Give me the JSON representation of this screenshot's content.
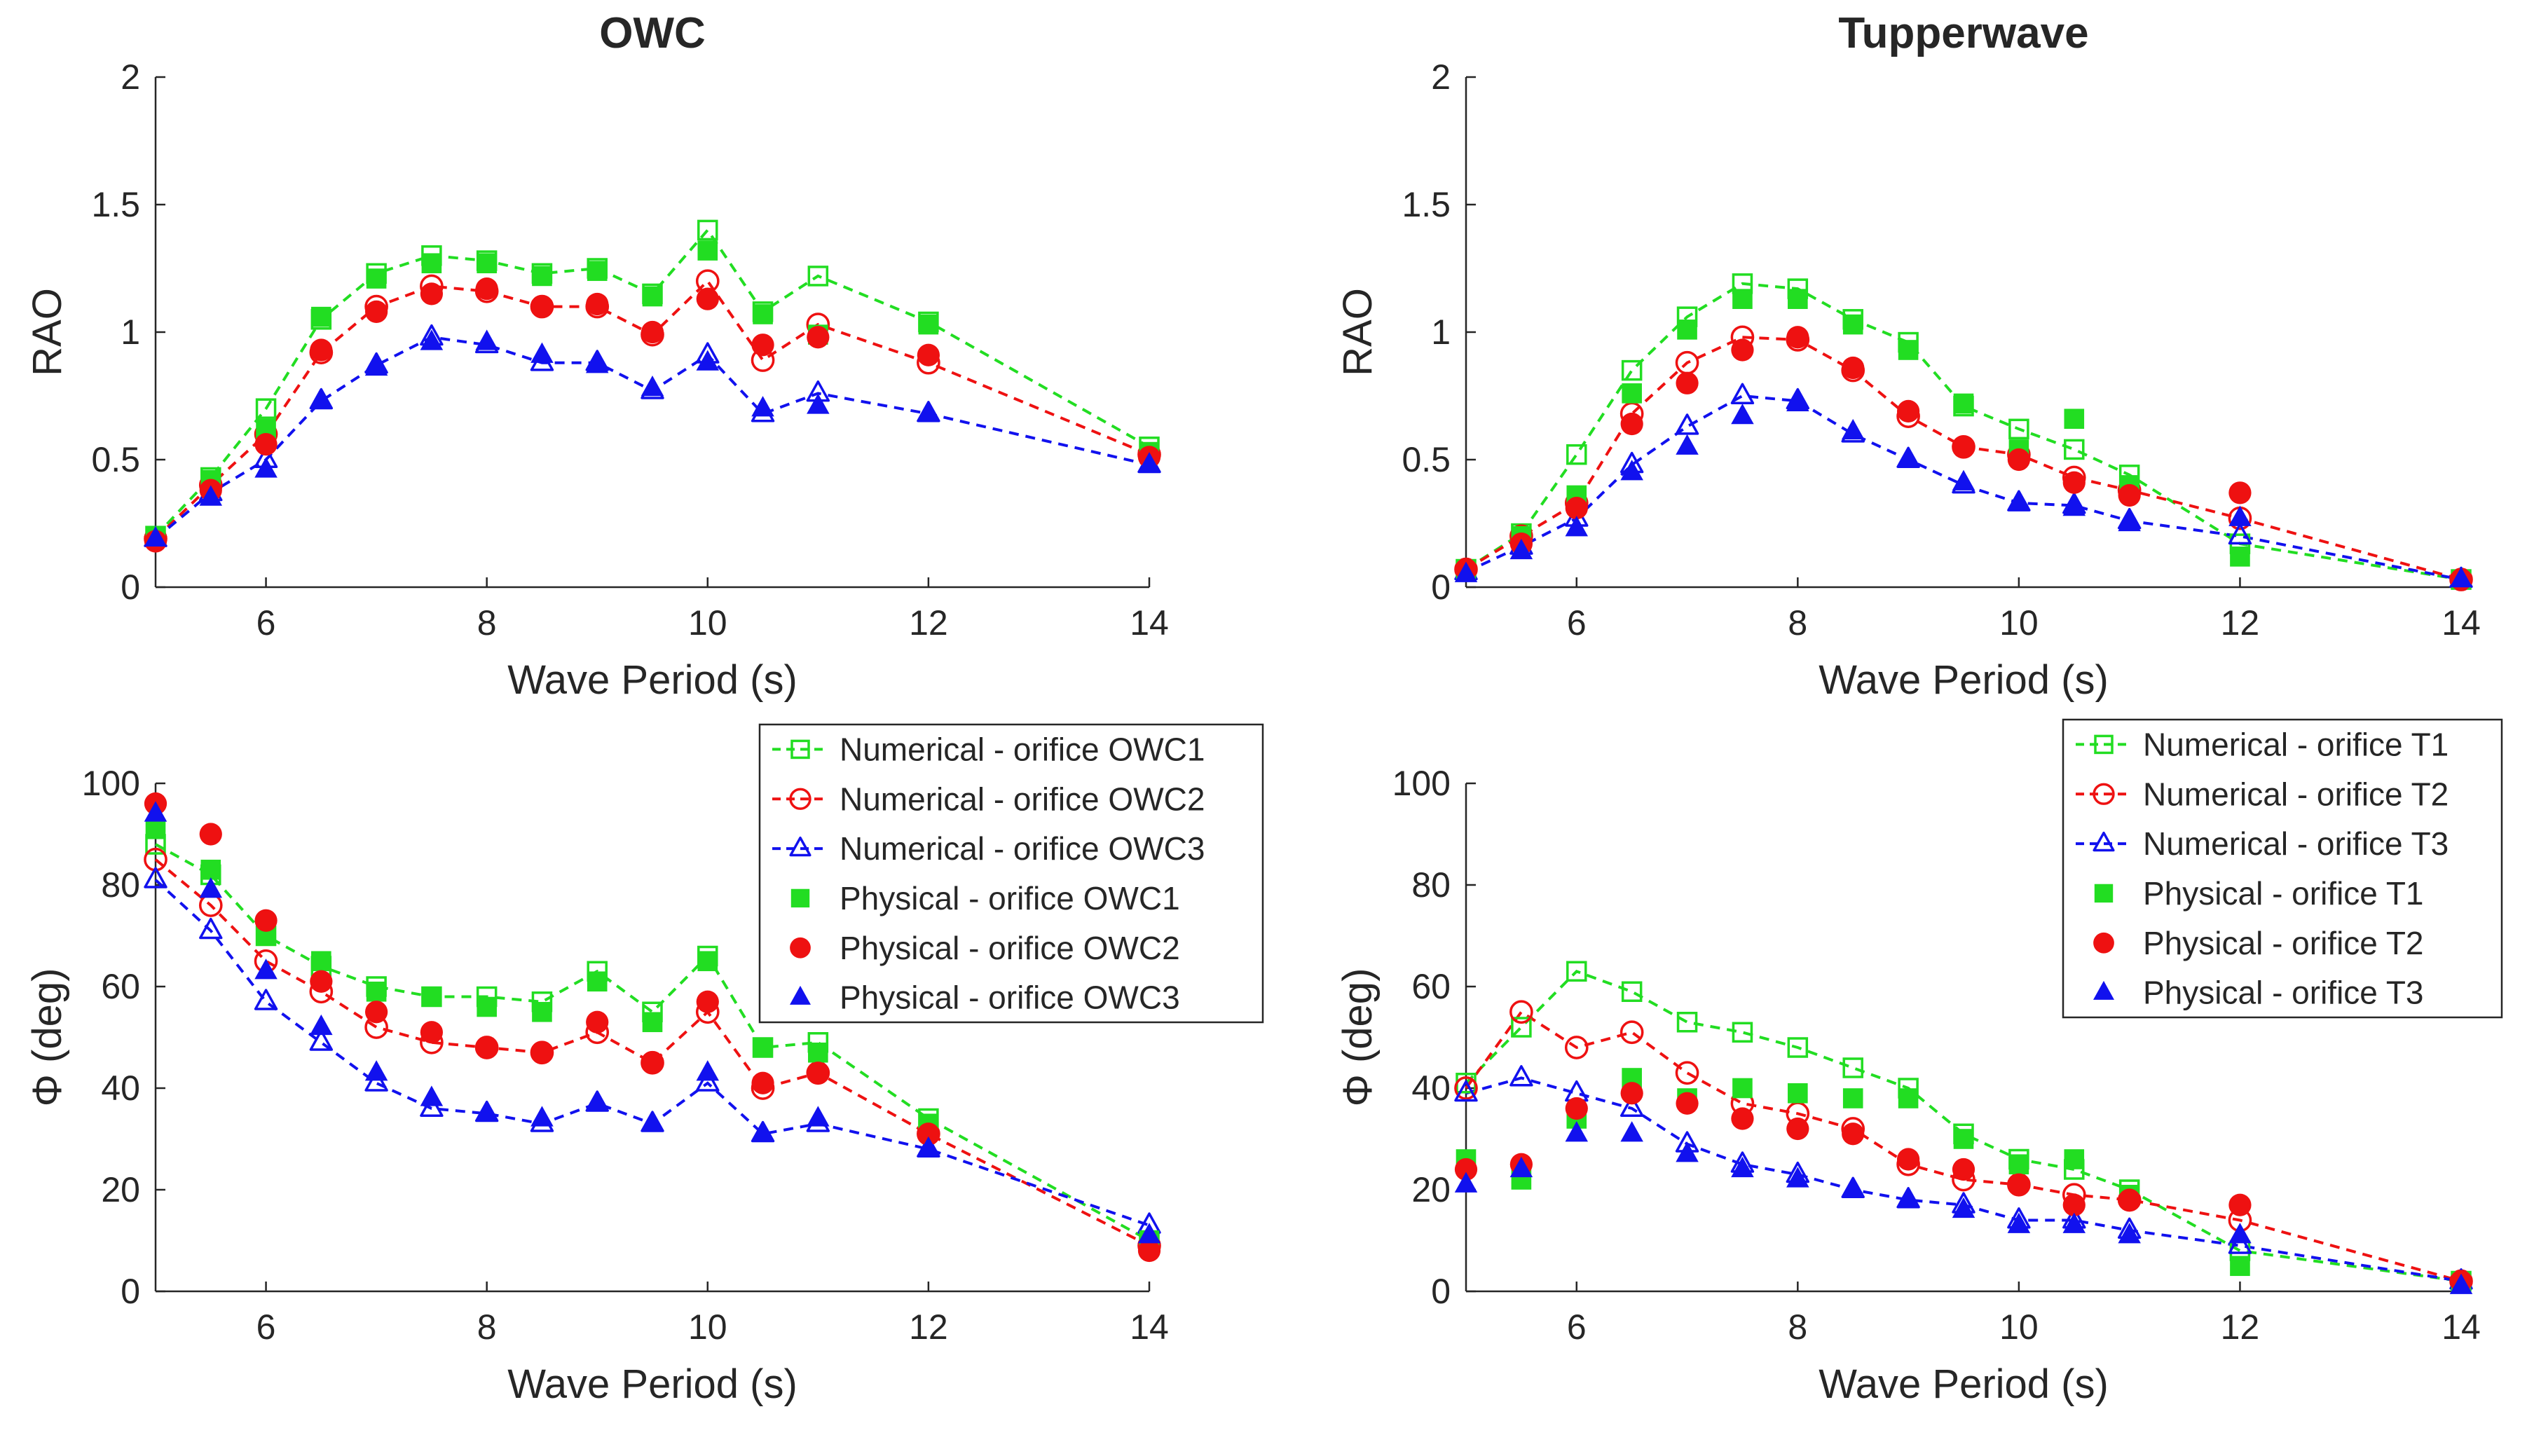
{
  "colors": {
    "Numerical - orifice OWC1": "#22dd22",
    "Numerical - orifice OWC2": "#ee1111",
    "Numerical - orifice OWC3": "#1111ee",
    "Physical - orifice OWC1": "#22dd22",
    "Physical - orifice OWC2": "#ee1111",
    "Physical - orifice OWC3": "#1111ee",
    "Numerical - orifice T1": "#22dd22",
    "Numerical - orifice T2": "#ee1111",
    "Numerical - orifice T3": "#1111ee",
    "Physical - orifice T1": "#22dd22",
    "Physical - orifice T2": "#ee1111",
    "Physical - orifice T3": "#1111ee"
  },
  "chart_data": [
    {
      "type": "line",
      "title": "OWC",
      "xlabel": "Wave Period (s)",
      "ylabel": "RAO",
      "xlim": [
        5,
        14
      ],
      "ylim": [
        0,
        2
      ],
      "xticks": [
        6,
        8,
        10,
        12,
        14
      ],
      "yticks": [
        0,
        0.5,
        1,
        1.5,
        2
      ],
      "ytick_labels": [
        "0",
        "0.5",
        "1",
        "1.5",
        "2"
      ],
      "legend": false,
      "series": [
        {
          "name": "Numerical - orifice OWC1",
          "style": "num",
          "marker": "square",
          "x": [
            5,
            5.5,
            6,
            6.5,
            7,
            7.5,
            8,
            8.5,
            9,
            9.5,
            10,
            10.5,
            11,
            12,
            14
          ],
          "values": [
            0.2,
            0.43,
            0.7,
            1.05,
            1.23,
            1.3,
            1.28,
            1.23,
            1.25,
            1.15,
            1.4,
            1.08,
            1.22,
            1.04,
            0.55
          ]
        },
        {
          "name": "Numerical - orifice OWC2",
          "style": "num",
          "marker": "circle",
          "x": [
            5,
            5.5,
            6,
            6.5,
            7,
            7.5,
            8,
            8.5,
            9,
            9.5,
            10,
            10.5,
            11,
            12,
            14
          ],
          "values": [
            0.19,
            0.4,
            0.6,
            0.92,
            1.1,
            1.18,
            1.16,
            1.1,
            1.1,
            0.99,
            1.2,
            0.89,
            1.03,
            0.88,
            0.52
          ]
        },
        {
          "name": "Numerical - orifice OWC3",
          "style": "num",
          "marker": "triangle",
          "x": [
            5,
            5.5,
            6,
            6.5,
            7,
            7.5,
            8,
            8.5,
            9,
            9.5,
            10,
            10.5,
            11,
            12,
            14
          ],
          "values": [
            0.19,
            0.37,
            0.5,
            0.73,
            0.87,
            0.98,
            0.95,
            0.88,
            0.88,
            0.77,
            0.91,
            0.68,
            0.76,
            0.68,
            0.48
          ]
        },
        {
          "name": "Physical - orifice OWC1",
          "style": "phys",
          "marker": "square",
          "x": [
            5,
            5.5,
            6,
            6.5,
            7,
            7.5,
            8,
            8.5,
            9,
            9.5,
            10,
            10.5,
            11,
            12,
            14
          ],
          "values": [
            0.2,
            0.42,
            0.62,
            1.06,
            1.21,
            1.27,
            1.27,
            1.22,
            1.24,
            1.14,
            1.32,
            1.07,
            0.99,
            1.03,
            0.53
          ]
        },
        {
          "name": "Physical - orifice OWC2",
          "style": "phys",
          "marker": "circle",
          "x": [
            5,
            5.5,
            6,
            6.5,
            7,
            7.5,
            8,
            8.5,
            9,
            9.5,
            10,
            10.5,
            11,
            12,
            14
          ],
          "values": [
            0.18,
            0.38,
            0.56,
            0.93,
            1.08,
            1.15,
            1.17,
            1.1,
            1.11,
            1.0,
            1.13,
            0.95,
            0.98,
            0.91,
            0.51
          ]
        },
        {
          "name": "Physical - orifice OWC3",
          "style": "phys",
          "marker": "triangle",
          "x": [
            5,
            5.5,
            6,
            6.5,
            7,
            7.5,
            8,
            8.5,
            9,
            9.5,
            10,
            10.5,
            11,
            12,
            14
          ],
          "values": [
            0.19,
            0.35,
            0.46,
            0.73,
            0.86,
            0.96,
            0.96,
            0.91,
            0.87,
            0.78,
            0.88,
            0.7,
            0.71,
            0.68,
            0.48
          ]
        }
      ]
    },
    {
      "type": "line",
      "title": "Tupperwave",
      "xlabel": "Wave Period (s)",
      "ylabel": "RAO",
      "xlim": [
        5,
        14
      ],
      "ylim": [
        0,
        2
      ],
      "xticks": [
        6,
        8,
        10,
        12,
        14
      ],
      "yticks": [
        0,
        0.5,
        1,
        1.5,
        2
      ],
      "ytick_labels": [
        "0",
        "0.5",
        "1",
        "1.5",
        "2"
      ],
      "legend": false,
      "series": [
        {
          "name": "Numerical - orifice T1",
          "style": "num",
          "marker": "square",
          "x": [
            5,
            5.5,
            6,
            6.5,
            7,
            7.5,
            8,
            8.5,
            9,
            9.5,
            10,
            10.5,
            11,
            12,
            14
          ],
          "values": [
            0.07,
            0.21,
            0.52,
            0.85,
            1.06,
            1.19,
            1.17,
            1.05,
            0.96,
            0.71,
            0.62,
            0.54,
            0.44,
            0.17,
            0.03
          ]
        },
        {
          "name": "Numerical - orifice T2",
          "style": "num",
          "marker": "circle",
          "x": [
            5,
            5.5,
            6,
            6.5,
            7,
            7.5,
            8,
            8.5,
            9,
            9.5,
            10,
            10.5,
            11,
            12,
            14
          ],
          "values": [
            0.07,
            0.2,
            0.33,
            0.68,
            0.88,
            0.98,
            0.97,
            0.85,
            0.67,
            0.55,
            0.52,
            0.43,
            0.38,
            0.27,
            0.03
          ]
        },
        {
          "name": "Numerical - orifice T3",
          "style": "num",
          "marker": "triangle",
          "x": [
            5,
            5.5,
            6,
            6.5,
            7,
            7.5,
            8,
            8.5,
            9,
            9.5,
            10,
            10.5,
            11,
            12,
            14
          ],
          "values": [
            0.06,
            0.16,
            0.27,
            0.48,
            0.63,
            0.75,
            0.73,
            0.6,
            0.5,
            0.4,
            0.33,
            0.32,
            0.26,
            0.2,
            0.03
          ]
        },
        {
          "name": "Physical - orifice T1",
          "style": "phys",
          "marker": "square",
          "x": [
            5,
            5.5,
            6,
            6.5,
            7,
            7.5,
            8,
            8.5,
            9,
            9.5,
            10,
            10.5,
            11,
            12,
            14
          ],
          "values": [
            0.07,
            0.2,
            0.36,
            0.76,
            1.01,
            1.13,
            1.13,
            1.03,
            0.93,
            0.72,
            0.54,
            0.66,
            0.4,
            0.12,
            0.03
          ]
        },
        {
          "name": "Physical - orifice T2",
          "style": "phys",
          "marker": "circle",
          "x": [
            5,
            5.5,
            6,
            6.5,
            7,
            7.5,
            8,
            8.5,
            9,
            9.5,
            10,
            10.5,
            11,
            12,
            14
          ],
          "values": [
            0.07,
            0.17,
            0.31,
            0.64,
            0.8,
            0.93,
            0.98,
            0.86,
            0.69,
            0.55,
            0.5,
            0.41,
            0.36,
            0.37,
            0.03
          ]
        },
        {
          "name": "Physical - orifice T3",
          "style": "phys",
          "marker": "triangle",
          "x": [
            5,
            5.5,
            6,
            6.5,
            7,
            7.5,
            8,
            8.5,
            9,
            9.5,
            10,
            10.5,
            11,
            12,
            14
          ],
          "values": [
            0.05,
            0.14,
            0.23,
            0.45,
            0.55,
            0.67,
            0.72,
            0.61,
            0.5,
            0.41,
            0.33,
            0.31,
            0.25,
            0.27,
            0.03
          ]
        }
      ]
    },
    {
      "type": "line",
      "title": "",
      "xlabel": "Wave Period (s)",
      "ylabel": "Φ (deg)",
      "xlim": [
        5,
        14
      ],
      "ylim": [
        0,
        100
      ],
      "xticks": [
        6,
        8,
        10,
        12,
        14
      ],
      "yticks": [
        0,
        20,
        40,
        60,
        80,
        100
      ],
      "ytick_labels": [
        "0",
        "20",
        "40",
        "60",
        "80",
        "100"
      ],
      "legend": "top-right",
      "series": [
        {
          "name": "Numerical - orifice OWC1",
          "style": "num",
          "marker": "square",
          "x": [
            5,
            5.5,
            6,
            6.5,
            7,
            7.5,
            8,
            8.5,
            9,
            9.5,
            10,
            10.5,
            11,
            12,
            14
          ],
          "values": [
            88,
            82,
            70,
            64,
            60,
            58,
            58,
            57,
            63,
            55,
            66,
            48,
            49,
            34,
            10
          ]
        },
        {
          "name": "Numerical - orifice OWC2",
          "style": "num",
          "marker": "circle",
          "x": [
            5,
            5.5,
            6,
            6.5,
            7,
            7.5,
            8,
            8.5,
            9,
            9.5,
            10,
            10.5,
            11,
            12,
            14
          ],
          "values": [
            85,
            76,
            65,
            59,
            52,
            49,
            48,
            47,
            51,
            45,
            55,
            40,
            43,
            31,
            9
          ]
        },
        {
          "name": "Numerical - orifice OWC3",
          "style": "num",
          "marker": "triangle",
          "x": [
            5,
            5.5,
            6,
            6.5,
            7,
            7.5,
            8,
            8.5,
            9,
            9.5,
            10,
            10.5,
            11,
            12,
            14
          ],
          "values": [
            81,
            71,
            57,
            49,
            41,
            36,
            35,
            33,
            37,
            33,
            41,
            31,
            33,
            28,
            13
          ]
        },
        {
          "name": "Physical - orifice OWC1",
          "style": "phys",
          "marker": "square",
          "x": [
            5,
            5.5,
            6,
            6.5,
            7,
            7.5,
            8,
            8.5,
            9,
            9.5,
            10,
            10.5,
            11,
            12,
            14
          ],
          "values": [
            91,
            83,
            70,
            65,
            59,
            58,
            56,
            55,
            61,
            53,
            65,
            48,
            47,
            33,
            10
          ]
        },
        {
          "name": "Physical - orifice OWC2",
          "style": "phys",
          "marker": "circle",
          "x": [
            5,
            5.5,
            6,
            6.5,
            7,
            7.5,
            8,
            8.5,
            9,
            9.5,
            10,
            10.5,
            11,
            12,
            14
          ],
          "values": [
            96,
            90,
            73,
            61,
            55,
            51,
            48,
            47,
            53,
            45,
            57,
            41,
            43,
            31,
            8
          ]
        },
        {
          "name": "Physical - orifice OWC3",
          "style": "phys",
          "marker": "triangle",
          "x": [
            5,
            5.5,
            6,
            6.5,
            7,
            7.5,
            8,
            8.5,
            9,
            9.5,
            10,
            10.5,
            11,
            12,
            14
          ],
          "values": [
            94,
            79,
            63,
            52,
            43,
            38,
            35,
            34,
            37,
            33,
            43,
            31,
            34,
            28,
            11
          ]
        }
      ]
    },
    {
      "type": "line",
      "title": "",
      "xlabel": "Wave Period (s)",
      "ylabel": "Φ (deg)",
      "xlim": [
        5,
        14
      ],
      "ylim": [
        0,
        100
      ],
      "xticks": [
        6,
        8,
        10,
        12,
        14
      ],
      "yticks": [
        0,
        20,
        40,
        60,
        80,
        100
      ],
      "ytick_labels": [
        "0",
        "20",
        "40",
        "60",
        "80",
        "100"
      ],
      "legend": "top-right",
      "series": [
        {
          "name": "Numerical - orifice T1",
          "style": "num",
          "marker": "square",
          "x": [
            5,
            5.5,
            6,
            6.5,
            7,
            7.5,
            8,
            8.5,
            9,
            9.5,
            10,
            10.5,
            11,
            12,
            14
          ],
          "values": [
            41,
            52,
            63,
            59,
            53,
            51,
            48,
            44,
            40,
            31,
            26,
            24,
            20,
            8,
            2
          ]
        },
        {
          "name": "Numerical - orifice T2",
          "style": "num",
          "marker": "circle",
          "x": [
            5,
            5.5,
            6,
            6.5,
            7,
            7.5,
            8,
            8.5,
            9,
            9.5,
            10,
            10.5,
            11,
            12,
            14
          ],
          "values": [
            40,
            55,
            48,
            51,
            43,
            37,
            35,
            32,
            25,
            22,
            21,
            19,
            18,
            14,
            2
          ]
        },
        {
          "name": "Numerical - orifice T3",
          "style": "num",
          "marker": "triangle",
          "x": [
            5,
            5.5,
            6,
            6.5,
            7,
            7.5,
            8,
            8.5,
            9,
            9.5,
            10,
            10.5,
            11,
            12,
            14
          ],
          "values": [
            39,
            42,
            39,
            36,
            29,
            25,
            23,
            20,
            18,
            17,
            14,
            14,
            12,
            9,
            2
          ]
        },
        {
          "name": "Physical - orifice T1",
          "style": "phys",
          "marker": "square",
          "x": [
            5,
            5.5,
            6,
            6.5,
            7,
            7.5,
            8,
            8.5,
            9,
            9.5,
            10,
            10.5,
            11,
            12,
            14
          ],
          "values": [
            26,
            22,
            34,
            42,
            38,
            40,
            39,
            38,
            38,
            30,
            25,
            26,
            19,
            5,
            2
          ]
        },
        {
          "name": "Physical - orifice T2",
          "style": "phys",
          "marker": "circle",
          "x": [
            5,
            5.5,
            6,
            6.5,
            7,
            7.5,
            8,
            8.5,
            9,
            9.5,
            10,
            10.5,
            11,
            12,
            14
          ],
          "values": [
            24,
            25,
            36,
            39,
            37,
            34,
            32,
            31,
            26,
            24,
            21,
            17,
            18,
            17,
            2
          ]
        },
        {
          "name": "Physical - orifice T3",
          "style": "phys",
          "marker": "triangle",
          "x": [
            5,
            5.5,
            6,
            6.5,
            7,
            7.5,
            8,
            8.5,
            9,
            9.5,
            10,
            10.5,
            11,
            12,
            14
          ],
          "values": [
            21,
            24,
            31,
            31,
            27,
            24,
            22,
            20,
            18,
            16,
            13,
            13,
            11,
            11,
            1
          ]
        }
      ]
    }
  ]
}
